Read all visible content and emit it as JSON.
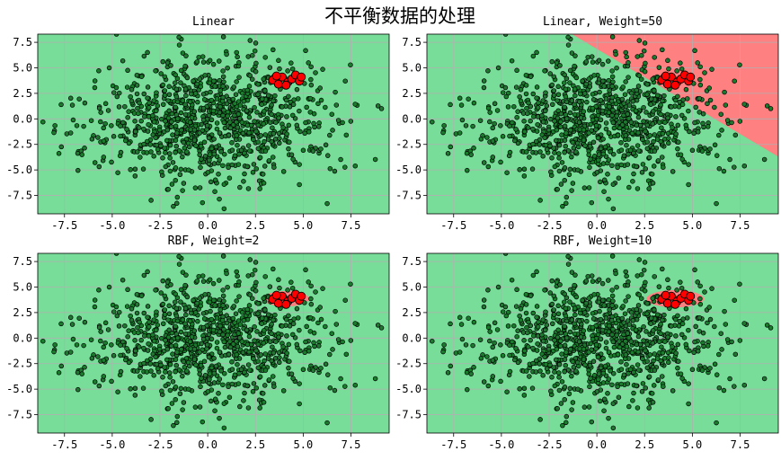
{
  "figure": {
    "title": "不平衡数据的处理"
  },
  "chart_data": [
    {
      "type": "scatter",
      "title": "Linear",
      "xlim": [
        -8.9,
        9.5
      ],
      "ylim": [
        -9.3,
        8.3
      ],
      "xticks": [
        -7.5,
        -5.0,
        -2.5,
        0.0,
        2.5,
        5.0,
        7.5
      ],
      "xtick_labels": [
        "-7.5",
        "-5.0",
        "-2.5",
        "0.0",
        "2.5",
        "5.0",
        "7.5"
      ],
      "yticks": [
        7.5,
        5.0,
        2.5,
        0.0,
        -2.5,
        -5.0,
        -7.5
      ],
      "ytick_labels": [
        "7.5",
        "5.0",
        "2.5",
        "0.0",
        "-2.5",
        "-5.0",
        "-7.5"
      ],
      "grid": true,
      "background_color": "#77dd99",
      "decision_region": {
        "kind": "none",
        "color": "#ff8080"
      },
      "series": [
        {
          "class": "majority",
          "color": "#1b7a2e",
          "points_approx_count": 1000,
          "distribution": "gaussian",
          "mean": [
            0,
            0
          ],
          "std": 3
        },
        {
          "class": "minority",
          "color": "#ff0000",
          "points": [
            [
              3.4,
              3.8
            ],
            [
              3.7,
              3.4
            ],
            [
              3.9,
              4.1
            ],
            [
              4.2,
              3.6
            ],
            [
              4.4,
              3.9
            ],
            [
              4.6,
              4.3
            ],
            [
              4.8,
              3.7
            ],
            [
              4.9,
              4.1
            ],
            [
              3.6,
              4.2
            ],
            [
              4.1,
              3.3
            ]
          ]
        }
      ]
    },
    {
      "type": "scatter",
      "title": "Linear, Weight=50",
      "xlim": [
        -8.9,
        9.5
      ],
      "ylim": [
        -9.3,
        8.3
      ],
      "xticks": [
        -7.5,
        -5.0,
        -2.5,
        0.0,
        2.5,
        5.0,
        7.5
      ],
      "xtick_labels": [
        "-7.5",
        "-5.0",
        "-2.5",
        "0.0",
        "2.5",
        "5.0",
        "7.5"
      ],
      "yticks": [
        7.5,
        5.0,
        2.5,
        0.0,
        -2.5,
        -5.0,
        -7.5
      ],
      "ytick_labels": [
        "7.5",
        "5.0",
        "2.5",
        "0.0",
        "-2.5",
        "-5.0",
        "-7.5"
      ],
      "grid": true,
      "background_color": "#77dd99",
      "decision_region": {
        "kind": "linear",
        "color": "#ff8080",
        "through": [
          [
            -1.3,
            8.3
          ],
          [
            9.5,
            -3.7
          ]
        ]
      },
      "series": [
        {
          "class": "majority",
          "color": "#1b7a2e",
          "points_approx_count": 1000,
          "distribution": "gaussian",
          "mean": [
            0,
            0
          ],
          "std": 3
        },
        {
          "class": "minority",
          "color": "#ff0000",
          "points": [
            [
              3.4,
              3.8
            ],
            [
              3.7,
              3.4
            ],
            [
              3.9,
              4.1
            ],
            [
              4.2,
              3.6
            ],
            [
              4.4,
              3.9
            ],
            [
              4.6,
              4.3
            ],
            [
              4.8,
              3.7
            ],
            [
              4.9,
              4.1
            ],
            [
              3.6,
              4.2
            ],
            [
              4.1,
              3.3
            ]
          ]
        }
      ]
    },
    {
      "type": "scatter",
      "title": "RBF, Weight=2",
      "xlim": [
        -8.9,
        9.5
      ],
      "ylim": [
        -9.3,
        8.3
      ],
      "xticks": [
        -7.5,
        -5.0,
        -2.5,
        0.0,
        2.5,
        5.0,
        7.5
      ],
      "xtick_labels": [
        "-7.5",
        "-5.0",
        "-2.5",
        "0.0",
        "2.5",
        "5.0",
        "7.5"
      ],
      "yticks": [
        7.5,
        5.0,
        2.5,
        0.0,
        -2.5,
        -5.0,
        -7.5
      ],
      "ytick_labels": [
        "7.5",
        "5.0",
        "2.5",
        "0.0",
        "-2.5",
        "-5.0",
        "-7.5"
      ],
      "grid": true,
      "background_color": "#77dd99",
      "decision_region": {
        "kind": "blob",
        "color": "#ff8080",
        "center": [
          4.1,
          3.85
        ],
        "radius": [
          1.2,
          0.75
        ]
      },
      "series": [
        {
          "class": "majority",
          "color": "#1b7a2e",
          "points_approx_count": 1000,
          "distribution": "gaussian",
          "mean": [
            0,
            0
          ],
          "std": 3
        },
        {
          "class": "minority",
          "color": "#ff0000",
          "points": [
            [
              3.4,
              3.8
            ],
            [
              3.7,
              3.4
            ],
            [
              3.9,
              4.1
            ],
            [
              4.2,
              3.6
            ],
            [
              4.4,
              3.9
            ],
            [
              4.6,
              4.3
            ],
            [
              4.8,
              3.7
            ],
            [
              4.9,
              4.1
            ],
            [
              3.6,
              4.2
            ],
            [
              4.1,
              3.3
            ]
          ]
        }
      ]
    },
    {
      "type": "scatter",
      "title": "RBF, Weight=10",
      "xlim": [
        -8.9,
        9.5
      ],
      "ylim": [
        -9.3,
        8.3
      ],
      "xticks": [
        -7.5,
        -5.0,
        -2.5,
        0.0,
        2.5,
        5.0,
        7.5
      ],
      "xtick_labels": [
        "-7.5",
        "-5.0",
        "-2.5",
        "0.0",
        "2.5",
        "5.0",
        "7.5"
      ],
      "yticks": [
        7.5,
        5.0,
        2.5,
        0.0,
        -2.5,
        -5.0,
        -7.5
      ],
      "ytick_labels": [
        "7.5",
        "5.0",
        "2.5",
        "0.0",
        "-2.5",
        "-5.0",
        "-7.5"
      ],
      "grid": true,
      "background_color": "#77dd99",
      "decision_region": {
        "kind": "blob",
        "color": "#ff8080",
        "center": [
          4.1,
          3.85
        ],
        "radius": [
          1.5,
          0.85
        ]
      },
      "series": [
        {
          "class": "majority",
          "color": "#1b7a2e",
          "points_approx_count": 1000,
          "distribution": "gaussian",
          "mean": [
            0,
            0
          ],
          "std": 3
        },
        {
          "class": "minority",
          "color": "#ff0000",
          "points": [
            [
              3.4,
              3.8
            ],
            [
              3.7,
              3.4
            ],
            [
              3.9,
              4.1
            ],
            [
              4.2,
              3.6
            ],
            [
              4.4,
              3.9
            ],
            [
              4.6,
              4.3
            ],
            [
              4.8,
              3.7
            ],
            [
              4.9,
              4.1
            ],
            [
              3.6,
              4.2
            ],
            [
              4.1,
              3.3
            ]
          ]
        }
      ]
    }
  ]
}
